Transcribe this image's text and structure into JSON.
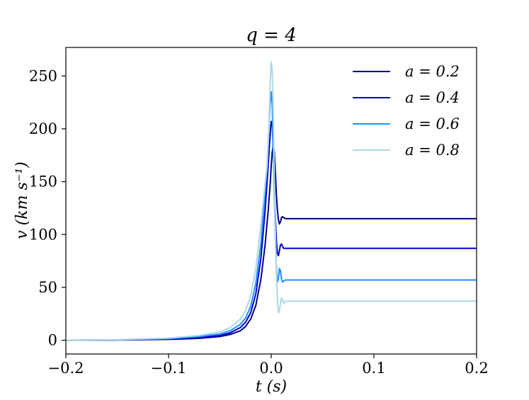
{
  "chart_data": {
    "type": "line",
    "title": "q = 4",
    "xlabel": "t (s)",
    "ylabel": "v (km s⁻¹)",
    "xlim": [
      -0.2,
      0.2
    ],
    "ylim": [
      -13,
      277
    ],
    "xticks": [
      -0.2,
      -0.1,
      0.0,
      0.1,
      0.2
    ],
    "xtick_labels": [
      "−0.2",
      "−0.1",
      "0.0",
      "0.1",
      "0.2"
    ],
    "yticks": [
      0,
      50,
      100,
      150,
      200,
      250
    ],
    "ytick_labels": [
      "0",
      "50",
      "100",
      "150",
      "200",
      "250"
    ],
    "grid": false,
    "legend_position": "top-right",
    "series": [
      {
        "name": "a = 0.2",
        "color": "#00008b",
        "x": [
          -0.2,
          -0.15,
          -0.1,
          -0.07,
          -0.05,
          -0.04,
          -0.03,
          -0.025,
          -0.02,
          -0.015,
          -0.01,
          -0.006,
          -0.003,
          -0.001,
          0.0,
          0.001,
          0.002,
          0.003,
          0.004,
          0.005,
          0.006,
          0.007,
          0.008,
          0.009,
          0.01,
          0.011,
          0.012,
          0.014,
          0.016,
          0.02,
          0.05,
          0.1,
          0.15,
          0.2
        ],
        "values": [
          0,
          0.2,
          0.8,
          1.8,
          3.5,
          5.5,
          9,
          13,
          20,
          33,
          58,
          90,
          122,
          148,
          165,
          178,
          184,
          178,
          160,
          138,
          124,
          114,
          110,
          112,
          116,
          117,
          116,
          115,
          115,
          115,
          115,
          115,
          115,
          115
        ]
      },
      {
        "name": "a = 0.4",
        "color": "#0000cd",
        "x": [
          -0.2,
          -0.15,
          -0.1,
          -0.07,
          -0.05,
          -0.04,
          -0.03,
          -0.025,
          -0.02,
          -0.015,
          -0.01,
          -0.006,
          -0.003,
          -0.001,
          0.0,
          0.001,
          0.002,
          0.003,
          0.004,
          0.005,
          0.006,
          0.007,
          0.008,
          0.009,
          0.01,
          0.011,
          0.012,
          0.014,
          0.016,
          0.02,
          0.05,
          0.1,
          0.15,
          0.2
        ],
        "values": [
          0,
          0.3,
          1.2,
          2.5,
          4.5,
          7,
          12,
          17,
          26,
          44,
          78,
          122,
          165,
          195,
          207,
          205,
          180,
          150,
          118,
          95,
          82,
          80,
          85,
          90,
          91,
          89,
          87,
          87,
          87,
          87,
          87,
          87,
          87,
          87
        ]
      },
      {
        "name": "a = 0.6",
        "color": "#1e90ff",
        "x": [
          -0.2,
          -0.15,
          -0.1,
          -0.07,
          -0.05,
          -0.04,
          -0.03,
          -0.025,
          -0.02,
          -0.015,
          -0.01,
          -0.006,
          -0.004,
          -0.002,
          -0.001,
          0.0,
          0.001,
          0.002,
          0.003,
          0.004,
          0.005,
          0.006,
          0.007,
          0.008,
          0.009,
          0.01,
          0.011,
          0.012,
          0.014,
          0.016,
          0.02,
          0.05,
          0.1,
          0.15,
          0.2
        ],
        "values": [
          0,
          0.4,
          1.6,
          3.5,
          6,
          9,
          15,
          21,
          32,
          54,
          92,
          140,
          165,
          205,
          225,
          235,
          222,
          185,
          140,
          100,
          70,
          55,
          58,
          68,
          66,
          58,
          55,
          56,
          57,
          57,
          57,
          57,
          57,
          57,
          57
        ]
      },
      {
        "name": "a = 0.8",
        "color": "#add8e6",
        "x": [
          -0.2,
          -0.15,
          -0.1,
          -0.07,
          -0.05,
          -0.04,
          -0.03,
          -0.025,
          -0.02,
          -0.015,
          -0.01,
          -0.006,
          -0.004,
          -0.002,
          -0.001,
          0.0,
          0.001,
          0.002,
          0.003,
          0.004,
          0.005,
          0.006,
          0.007,
          0.008,
          0.009,
          0.01,
          0.011,
          0.012,
          0.013,
          0.014,
          0.016,
          0.02,
          0.05,
          0.1,
          0.15,
          0.2
        ],
        "values": [
          0,
          0.5,
          2,
          4.5,
          8,
          12,
          20,
          28,
          42,
          68,
          110,
          148,
          165,
          205,
          245,
          263,
          255,
          215,
          160,
          105,
          65,
          38,
          26,
          28,
          35,
          40,
          38,
          35,
          36,
          37,
          37,
          37,
          37,
          37,
          37,
          37
        ]
      }
    ]
  }
}
